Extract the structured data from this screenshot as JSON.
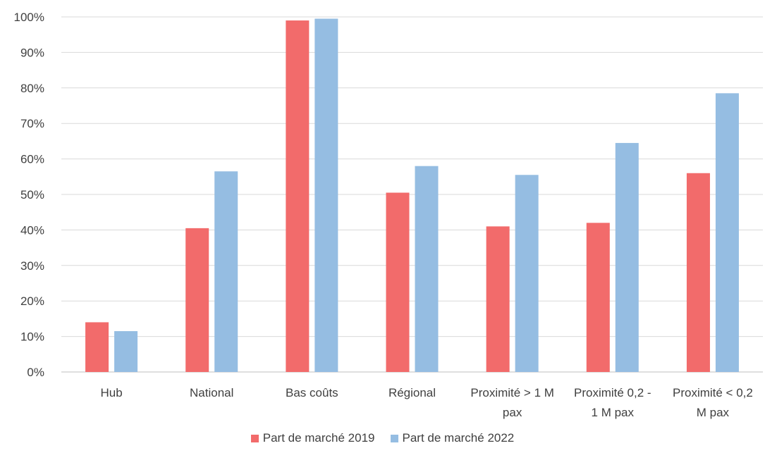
{
  "chart_data": {
    "type": "bar",
    "categories": [
      [
        "Hub"
      ],
      [
        "National"
      ],
      [
        "Bas coûts"
      ],
      [
        "Régional"
      ],
      [
        "Proximité > 1 M",
        "pax"
      ],
      [
        "Proximité 0,2 -",
        "1 M pax"
      ],
      [
        "Proximité < 0,2",
        "M pax"
      ]
    ],
    "series": [
      {
        "name": "Part de marché 2019",
        "color": "#f26b6b",
        "values": [
          14,
          40.5,
          99,
          50.5,
          41,
          42,
          56
        ]
      },
      {
        "name": "Part de marché 2022",
        "color": "#95bde2",
        "values": [
          11.5,
          56.5,
          99.5,
          58,
          55.5,
          64.5,
          78.5
        ]
      }
    ],
    "ylim": [
      0,
      100
    ],
    "yticks": [
      "0%",
      "10%",
      "20%",
      "30%",
      "40%",
      "50%",
      "60%",
      "70%",
      "80%",
      "90%",
      "100%"
    ],
    "grid": true,
    "legend_position": "bottom"
  }
}
